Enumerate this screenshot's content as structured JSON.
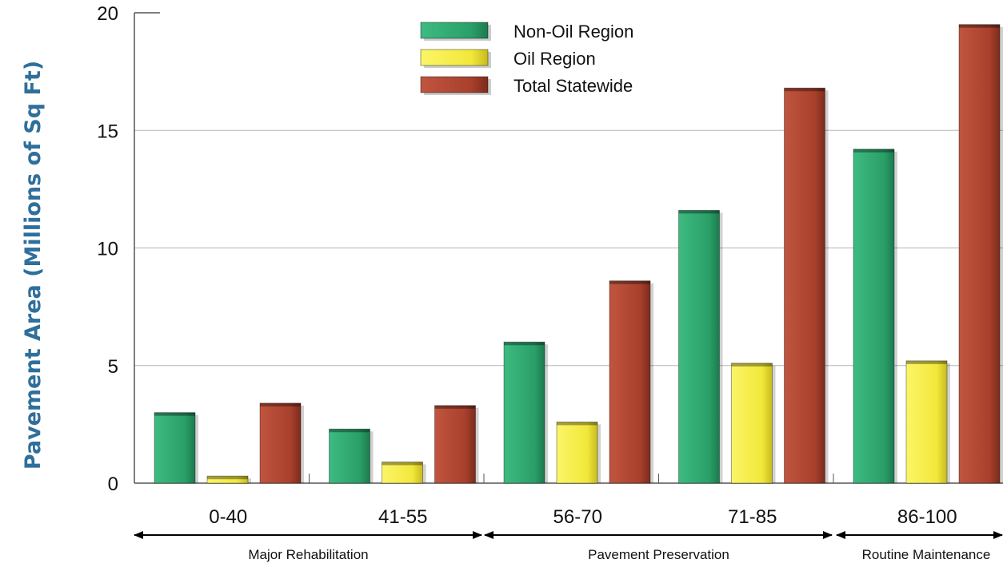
{
  "chart_data": {
    "type": "bar",
    "title": "",
    "xlabel": "",
    "ylabel": "Pavement Area (Millions of Sq Ft)",
    "ylim": [
      0,
      20
    ],
    "yticks": [
      "0",
      "5",
      "10",
      "15",
      "20"
    ],
    "grid": true,
    "legend_position": "top-center",
    "categories": [
      "0-40",
      "41-55",
      "56-70",
      "71-85",
      "86-100"
    ],
    "series": [
      {
        "name": "Non-Oil Region",
        "color": "#2a9f68",
        "values": [
          3.0,
          2.3,
          6.0,
          11.6,
          14.2
        ]
      },
      {
        "name": "Oil Region",
        "color": "#f2e83a",
        "values": [
          0.3,
          0.9,
          2.6,
          5.1,
          5.2
        ]
      },
      {
        "name": "Total Statewide",
        "color": "#a8402d",
        "values": [
          3.4,
          3.3,
          8.6,
          16.8,
          19.5
        ]
      }
    ],
    "category_groups": [
      {
        "label": "Major Rehabilitation",
        "span": [
          0,
          1
        ]
      },
      {
        "label": "Pavement Preservation",
        "span": [
          2,
          3
        ]
      },
      {
        "label": "Routine Maintenance",
        "span": [
          4,
          4
        ]
      }
    ]
  }
}
